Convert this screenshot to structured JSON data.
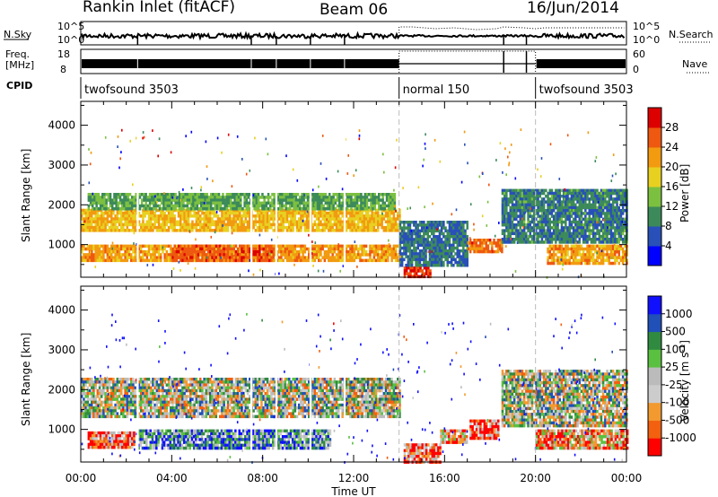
{
  "header": {
    "title": "Rankin Inlet (fitACF)",
    "beam": "Beam 06",
    "date": "16/Jun/2014"
  },
  "status_panels": {
    "nsky_label": "N.Sky",
    "nsky_ticks": [
      "10^5",
      "10^0"
    ],
    "nsearch_label": "N.Search",
    "nsearch_ticks": [
      "10^5",
      "10^0"
    ],
    "freq_label_1": "Freq.",
    "freq_label_2": "[MHz]",
    "freq_ticks": [
      "18",
      "8"
    ],
    "nave_label": "Nave",
    "nave_ticks": [
      "60",
      "0"
    ],
    "cpid_label": "CPID",
    "cpid_segments": [
      {
        "label": "twofsound 3503",
        "start": 0,
        "end": 14
      },
      {
        "label": "normal 150",
        "start": 14,
        "end": 20
      },
      {
        "label": "twofsound 3503",
        "start": 20,
        "end": 24
      }
    ]
  },
  "colors": {
    "power_scale": [
      "#0000ff",
      "#2850b8",
      "#3c8a5a",
      "#7cc040",
      "#e8d020",
      "#f29a10",
      "#ee5810",
      "#dd0000"
    ],
    "velocity_scale": [
      "#ff0000",
      "#f26010",
      "#f29a30",
      "#cccccc",
      "#bbbbbb",
      "#5ac040",
      "#308a40",
      "#2050b8",
      "#1010ff"
    ]
  },
  "chart_data": [
    {
      "type": "heatmap",
      "name": "power",
      "ylabel": "Slant Range [km]",
      "yticks": [
        "1000",
        "2000",
        "3000",
        "4000"
      ],
      "xticks": [
        "00:00",
        "04:00",
        "08:00",
        "12:00",
        "16:00",
        "20:00",
        "00:00"
      ],
      "xlim_hours": [
        0,
        24
      ],
      "ylim_km": [
        180,
        4600
      ],
      "colorbar_label": "Power [dB]",
      "colorbar_ticks": [
        "4",
        "8",
        "12",
        "16",
        "20",
        "24",
        "28"
      ],
      "colorbar_range": [
        0,
        30
      ],
      "regions": [
        {
          "t0": 0.0,
          "t1": 14.0,
          "r0": 600,
          "r1": 1000,
          "level": 22
        },
        {
          "t0": 0.0,
          "t1": 14.0,
          "r0": 1350,
          "r1": 1900,
          "level": 20
        },
        {
          "t0": 0.3,
          "t1": 13.8,
          "r0": 1900,
          "r1": 2300,
          "level": 12
        },
        {
          "t0": 4.0,
          "t1": 8.5,
          "r0": 600,
          "r1": 1000,
          "level": 26
        },
        {
          "t0": 14.2,
          "t1": 15.4,
          "r0": 200,
          "r1": 450,
          "level": 28
        },
        {
          "t0": 14.0,
          "t1": 17.0,
          "r0": 450,
          "r1": 1600,
          "level": 8
        },
        {
          "t0": 17.0,
          "t1": 18.5,
          "r0": 800,
          "r1": 1150,
          "level": 25
        },
        {
          "t0": 18.5,
          "t1": 24.0,
          "r0": 1100,
          "r1": 2400,
          "level": 9
        },
        {
          "t0": 20.5,
          "t1": 24.0,
          "r0": 500,
          "r1": 1000,
          "level": 22
        }
      ]
    },
    {
      "type": "heatmap",
      "name": "velocity",
      "ylabel": "Slant Range [km]",
      "yticks": [
        "1000",
        "2000",
        "3000",
        "4000"
      ],
      "xticks": [
        "00:00",
        "04:00",
        "08:00",
        "12:00",
        "16:00",
        "20:00",
        "00:00"
      ],
      "xlabel": "Time UT",
      "xlim_hours": [
        0,
        24
      ],
      "ylim_km": [
        180,
        4600
      ],
      "colorbar_label": "Velocity [m s^-1]",
      "colorbar_ticks": [
        "1000",
        "500",
        "100",
        "25",
        "-25",
        "-100",
        "-500",
        "-1000"
      ],
      "regions": [
        {
          "t0": 0.0,
          "t1": 14.0,
          "r0": 1300,
          "r1": 2300,
          "level": 4
        },
        {
          "t0": 0.3,
          "t1": 2.3,
          "r0": 550,
          "r1": 950,
          "level": 1
        },
        {
          "t0": 2.5,
          "t1": 11.0,
          "r0": 550,
          "r1": 1000,
          "level": 6
        },
        {
          "t0": 14.2,
          "t1": 15.8,
          "r0": 200,
          "r1": 650,
          "level": 1
        },
        {
          "t0": 15.8,
          "t1": 17.0,
          "r0": 700,
          "r1": 1000,
          "level": 2
        },
        {
          "t0": 17.1,
          "t1": 18.4,
          "r0": 800,
          "r1": 1250,
          "level": 1
        },
        {
          "t0": 18.5,
          "t1": 24.0,
          "r0": 1100,
          "r1": 2500,
          "level": 4
        },
        {
          "t0": 20.0,
          "t1": 24.0,
          "r0": 500,
          "r1": 1000,
          "level": 2
        }
      ]
    }
  ]
}
